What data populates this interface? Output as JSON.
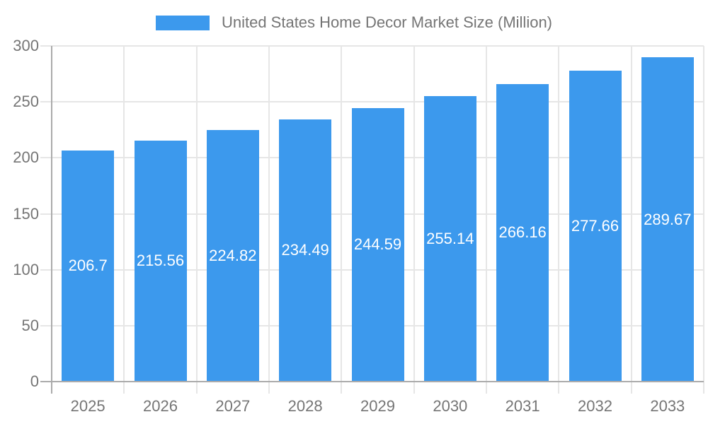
{
  "chart_data": {
    "type": "bar",
    "title": "",
    "legend": "United States Home Decor Market Size (Million)",
    "legend_position": "top-center",
    "categories": [
      "2025",
      "2026",
      "2027",
      "2028",
      "2029",
      "2030",
      "2031",
      "2032",
      "2033"
    ],
    "values": [
      206.7,
      215.56,
      224.82,
      234.49,
      244.59,
      255.14,
      266.16,
      277.66,
      289.67
    ],
    "value_labels": [
      "206.7",
      "215.56",
      "224.82",
      "234.49",
      "244.59",
      "255.14",
      "266.16",
      "277.66",
      "289.67"
    ],
    "xlabel": "",
    "ylabel": "",
    "ylim": [
      0,
      300
    ],
    "yticks": [
      0,
      50,
      100,
      150,
      200,
      250,
      300
    ],
    "grid": "on",
    "colors": {
      "bar": "#3C99ED",
      "bar_label_text": "#ffffff",
      "axis_text": "#757575",
      "grid_line": "#e6e6e6",
      "axis_line": "#ababab",
      "background": "#ffffff"
    }
  }
}
